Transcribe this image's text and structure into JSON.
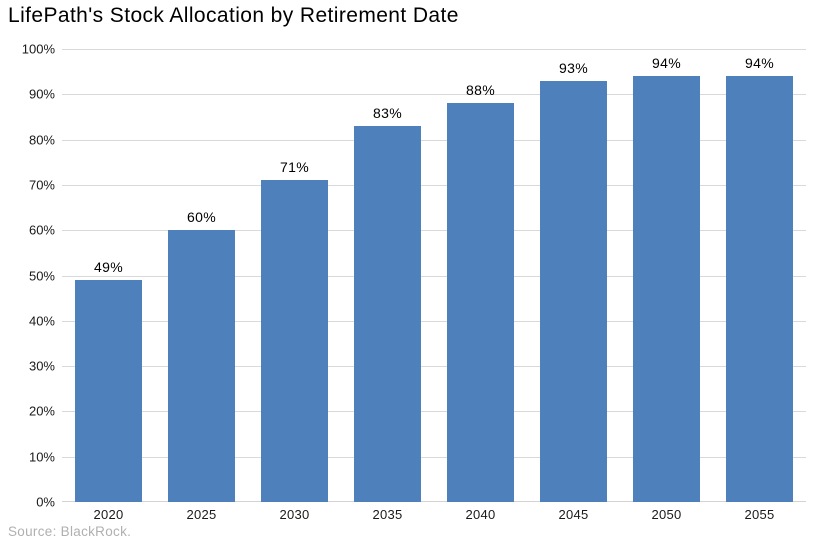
{
  "chart_data": {
    "type": "bar",
    "title": "LifePath's Stock Allocation by Retirement Date",
    "categories": [
      "2020",
      "2025",
      "2030",
      "2035",
      "2040",
      "2045",
      "2050",
      "2055"
    ],
    "values": [
      49,
      60,
      71,
      83,
      88,
      93,
      94,
      94
    ],
    "value_labels": [
      "49%",
      "60%",
      "71%",
      "83%",
      "88%",
      "93%",
      "94%",
      "94%"
    ],
    "xlabel": "",
    "ylabel": "",
    "ylim": [
      0,
      100
    ],
    "ytick_interval": 10,
    "ytick_labels": [
      "0%",
      "10%",
      "20%",
      "30%",
      "40%",
      "50%",
      "60%",
      "70%",
      "80%",
      "90%",
      "100%"
    ],
    "grid": true,
    "legend": false,
    "bar_color": "#4e80bc",
    "gridline_color": "#d9d9d9",
    "axis_line_color": "#d3d3d3",
    "source": "Source: BlackRock."
  }
}
